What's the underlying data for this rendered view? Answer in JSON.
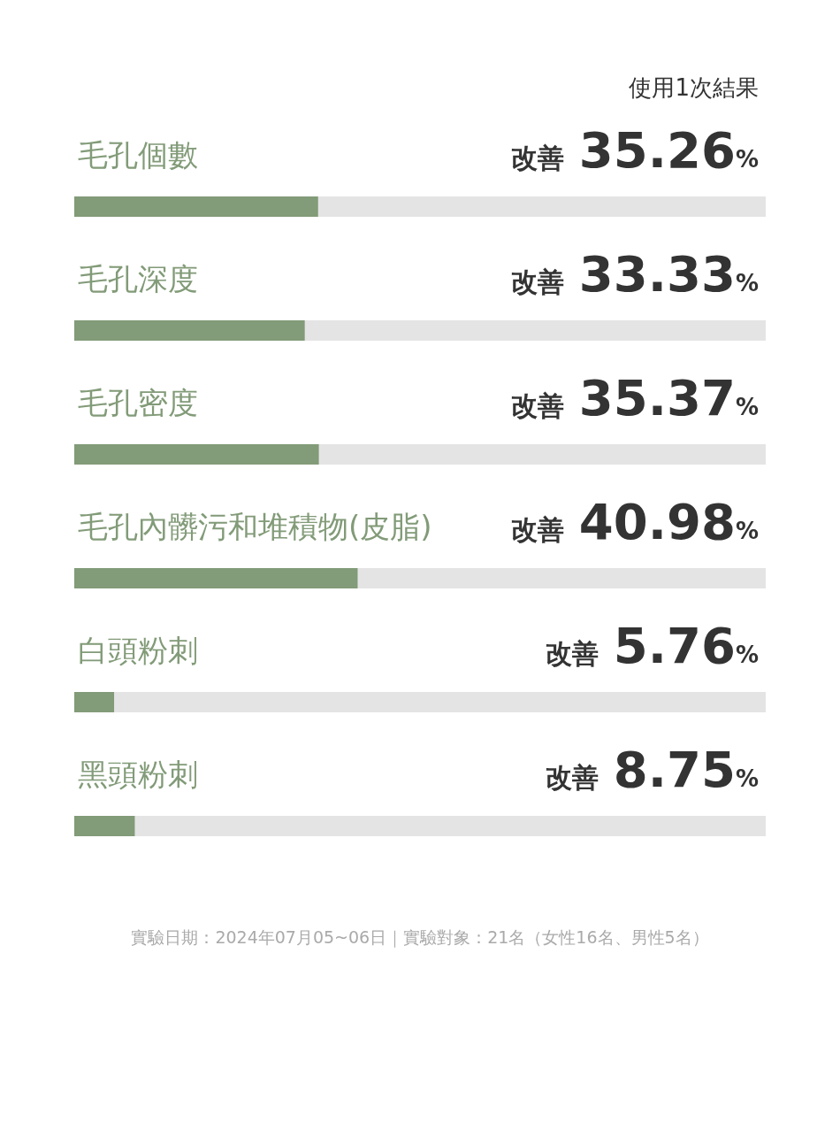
{
  "chart_data": {
    "type": "bar",
    "orientation": "horizontal",
    "subtitle": "使用1次結果",
    "categories": [
      "毛孔個數",
      "毛孔深度",
      "毛孔密度",
      "毛孔內髒污和堆積物(皮脂)",
      "白頭粉刺",
      "黑頭粉刺"
    ],
    "values": [
      35.26,
      33.33,
      35.37,
      40.98,
      5.76,
      8.75
    ],
    "value_labels": [
      "改善 35.26%",
      "改善 33.33%",
      "改善 35.37%",
      "改善 40.98%",
      "改善 5.76%",
      "改善 8.75%"
    ],
    "color": "#829b78",
    "xlim": [
      0,
      100
    ],
    "tick_labels": "y",
    "annotations": [
      "實驗日期：2024年07月05~06日｜實驗對象：21名（女性16名、男性5名）"
    ]
  }
}
